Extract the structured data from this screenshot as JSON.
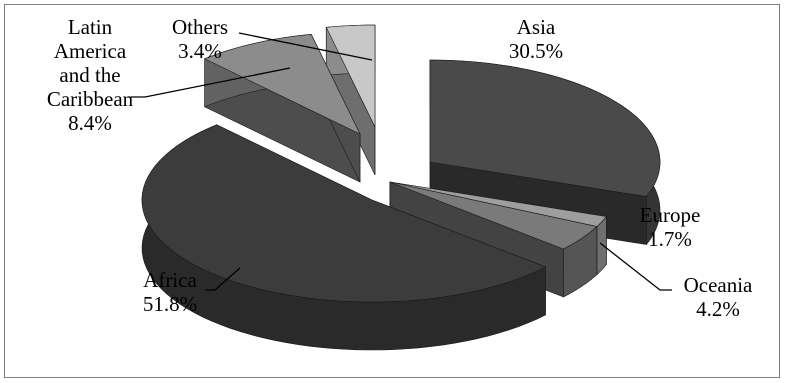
{
  "chart_data": {
    "type": "pie",
    "title": "",
    "categories": [
      "Asia",
      "Europe",
      "Oceania",
      "Africa",
      "Latin America and the Caribbean",
      "Others"
    ],
    "values": [
      30.5,
      1.7,
      4.2,
      51.8,
      8.4,
      3.4
    ],
    "value_labels": [
      "30.5%",
      "1.7%",
      "4.2%",
      "51.8%",
      "8.4%",
      "3.4%"
    ],
    "label_lines": [
      [
        "Asia"
      ],
      [
        "Europe"
      ],
      [
        "Oceania"
      ],
      [
        "Africa"
      ],
      [
        "Latin",
        "America",
        "and the",
        "Caribbean"
      ],
      [
        "Others"
      ]
    ],
    "colors": [
      "#4a4a4a",
      "#9e9e9e",
      "#7a7a7a",
      "#3c3c3c",
      "#8c8c8c",
      "#c8c8c8"
    ],
    "style": "3d-exploded",
    "legend": "none"
  }
}
